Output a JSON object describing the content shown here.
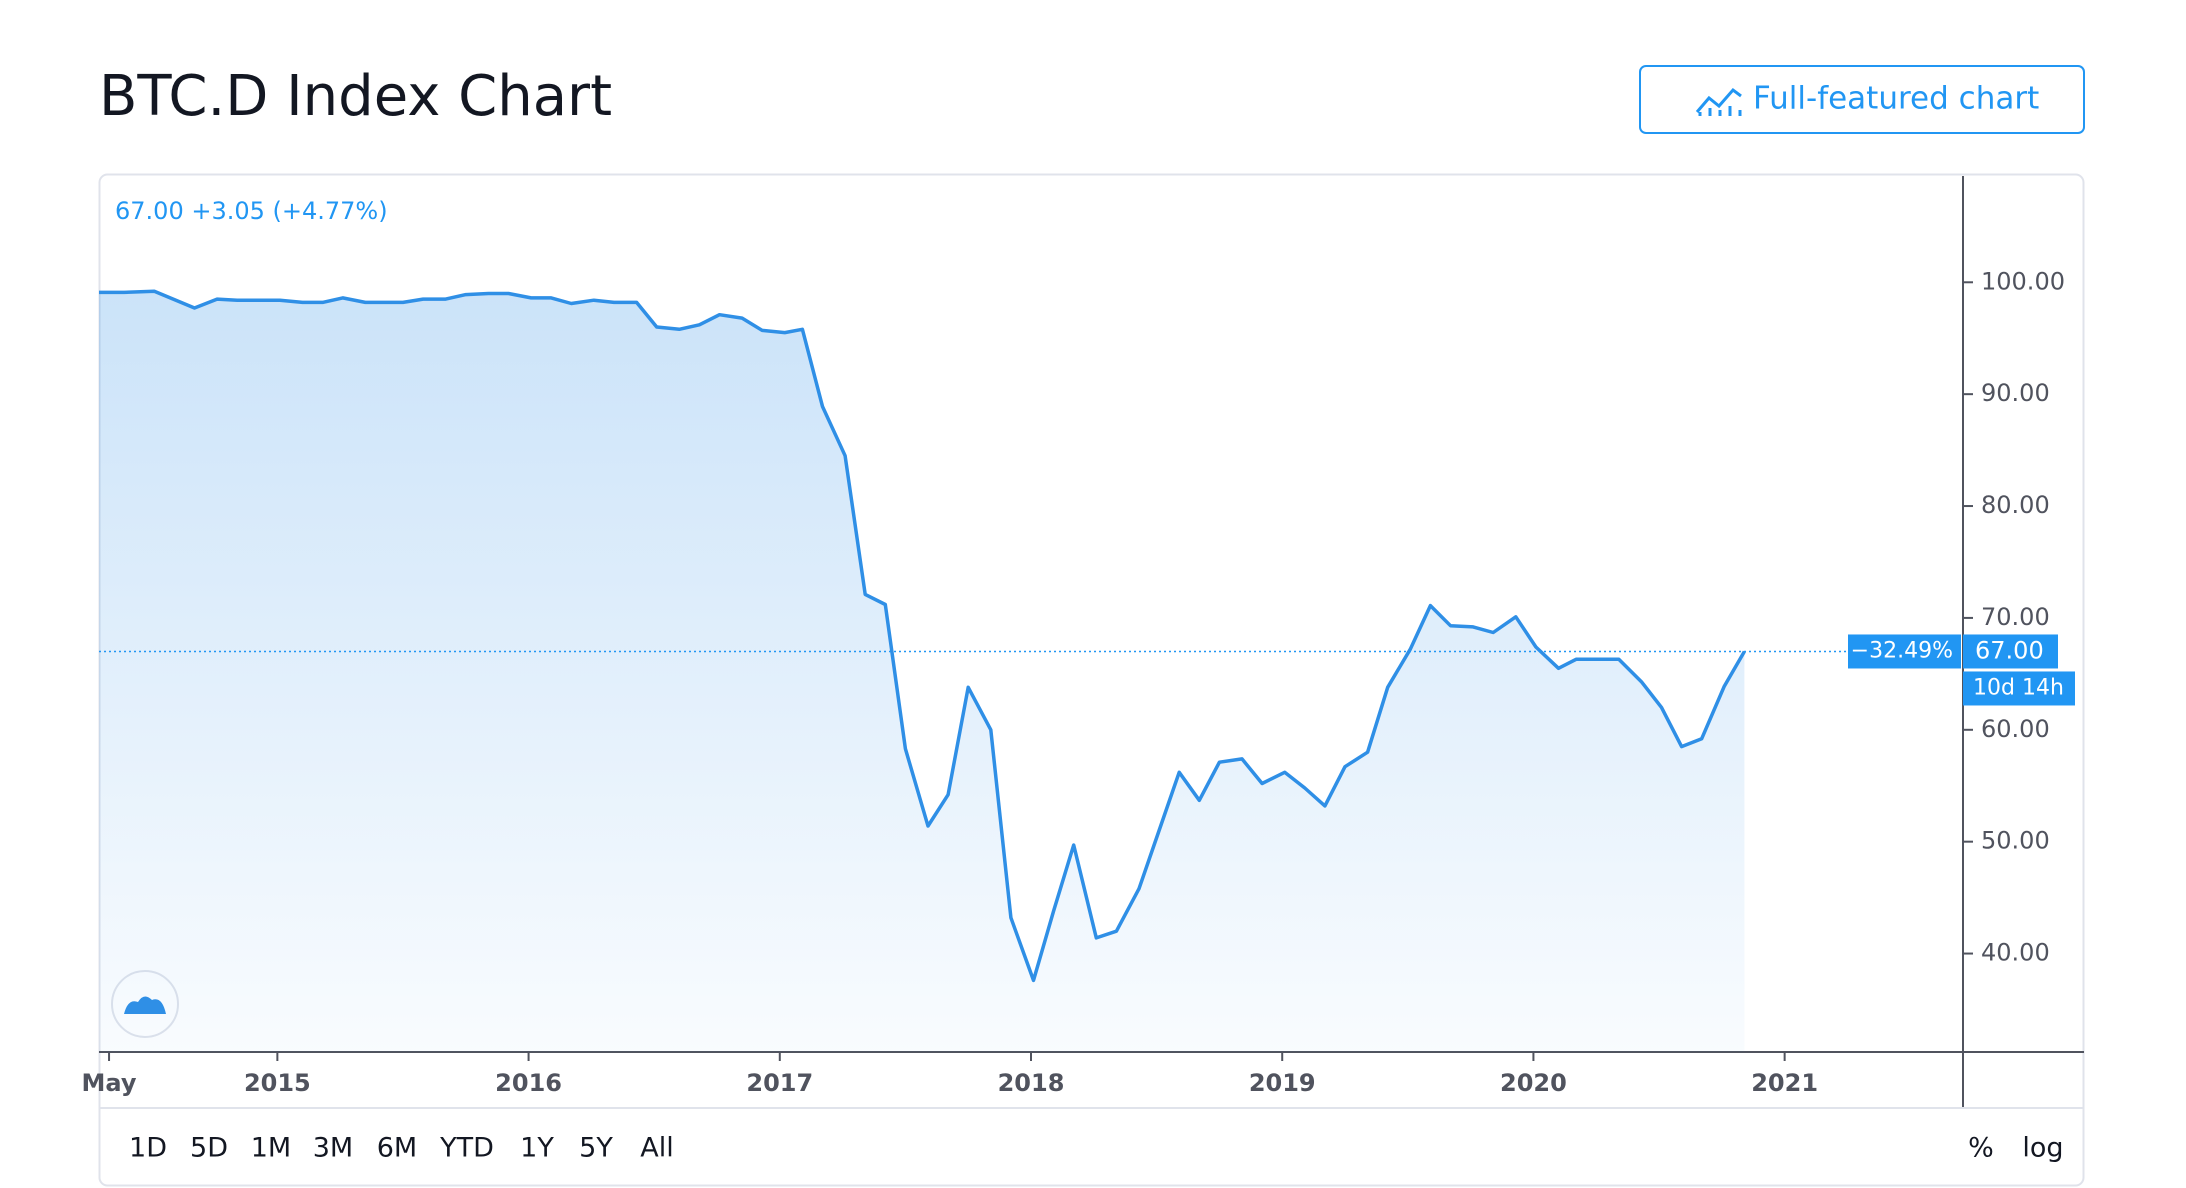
{
  "header": {
    "button": "Full-featured chart"
  },
  "chart_data": {
    "type": "area",
    "title": "BTC.D Index Chart",
    "legend_text": "67.00 +3.05 (+4.77%)",
    "color": "#2f8fe6",
    "x": [
      2014.29,
      2014.39,
      2014.51,
      2014.67,
      2014.76,
      2014.84,
      2015.01,
      2015.1,
      2015.18,
      2015.26,
      2015.35,
      2015.5,
      2015.58,
      2015.67,
      2015.75,
      2015.84,
      2015.92,
      2016.01,
      2016.09,
      2016.17,
      2016.26,
      2016.34,
      2016.43,
      2016.51,
      2016.6,
      2016.68,
      2016.76,
      2016.85,
      2016.93,
      2017.02,
      2017.09,
      2017.17,
      2017.26,
      2017.34,
      2017.42,
      2017.5,
      2017.59,
      2017.67,
      2017.75,
      2017.84,
      2017.92,
      2018.01,
      2018.09,
      2018.17,
      2018.26,
      2018.34,
      2018.43,
      2018.51,
      2018.59,
      2018.67,
      2018.75,
      2018.84,
      2018.92,
      2019.01,
      2019.09,
      2019.17,
      2019.25,
      2019.34,
      2019.42,
      2019.51,
      2019.59,
      2019.67,
      2019.76,
      2019.84,
      2019.93,
      2020.01,
      2020.1,
      2020.17,
      2020.26,
      2020.34,
      2020.43,
      2020.51,
      2020.59,
      2020.67,
      2020.76,
      2020.84
    ],
    "values": [
      99.1,
      99.1,
      99.2,
      97.7,
      98.5,
      98.4,
      98.4,
      98.2,
      98.2,
      98.6,
      98.2,
      98.2,
      98.5,
      98.5,
      98.9,
      99.0,
      99.0,
      98.6,
      98.6,
      98.1,
      98.4,
      98.2,
      98.2,
      96.0,
      95.8,
      96.2,
      97.1,
      96.8,
      95.7,
      95.5,
      95.8,
      88.9,
      84.5,
      72.1,
      71.2,
      58.3,
      51.4,
      54.2,
      63.8,
      60.0,
      43.2,
      37.6,
      43.8,
      49.7,
      41.4,
      42.0,
      45.8,
      51.0,
      56.2,
      53.7,
      57.1,
      57.4,
      55.2,
      56.2,
      54.8,
      53.2,
      56.7,
      58.0,
      63.8,
      67.2,
      71.1,
      69.3,
      69.2,
      68.7,
      70.1,
      67.4,
      65.5,
      66.3,
      66.3,
      66.3,
      64.3,
      62.0,
      58.5,
      59.2,
      63.9,
      67.0
    ],
    "xlim": [
      2014.29,
      2021.71
    ],
    "xticks": [
      {
        "value": 2014.33,
        "label": "May"
      },
      2015,
      2016,
      2017,
      2018,
      2019,
      2020,
      2021
    ],
    "ylim": [
      31.2,
      109.5
    ],
    "yticks": [
      {
        "value": 40,
        "label": "40.00"
      },
      {
        "value": 50,
        "label": "50.00"
      },
      {
        "value": 60,
        "label": "60.00"
      },
      {
        "value": 70,
        "label": "70.00"
      },
      {
        "value": 80,
        "label": "80.00"
      },
      {
        "value": 90,
        "label": "90.00"
      },
      {
        "value": 100,
        "label": "100.00"
      }
    ],
    "price_line": {
      "value": 67,
      "label": "67.00",
      "change_label": "−32.49%",
      "countdown": "10d 14h"
    }
  },
  "toolbar": {
    "ranges": [
      "1D",
      "5D",
      "1M",
      "3M",
      "6M",
      "YTD",
      "1Y",
      "5Y",
      "All"
    ],
    "scales": [
      "%",
      "log"
    ]
  }
}
